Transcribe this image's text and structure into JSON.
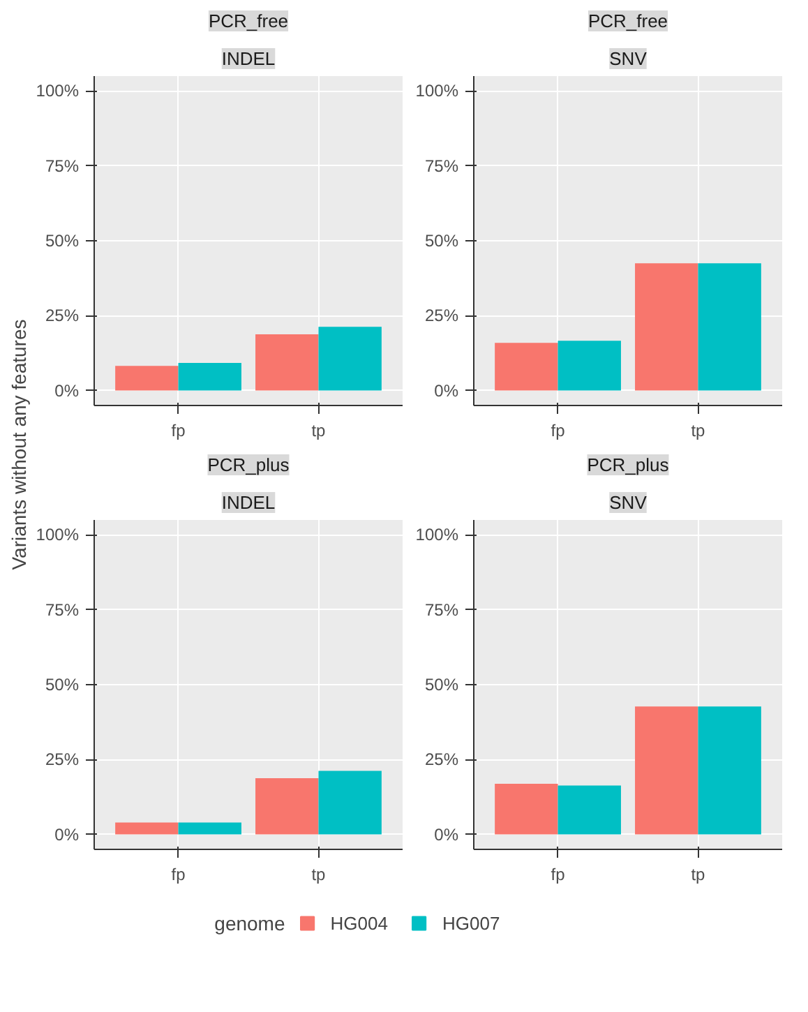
{
  "chart_data": [
    {
      "type": "bar",
      "title": "PCR_free",
      "subtitle": "INDEL",
      "ylabel": "Variants without any features",
      "categories": [
        "fp",
        "tp"
      ],
      "ylim": [
        -5,
        105
      ],
      "yticks": [
        {
          "value": 0,
          "label": "0%"
        },
        {
          "value": 25,
          "label": "25%"
        },
        {
          "value": 50,
          "label": "50%"
        },
        {
          "value": 75,
          "label": "75%"
        },
        {
          "value": 100,
          "label": "100%"
        }
      ],
      "grid": true,
      "legend": "bottom",
      "legend_title": "genome",
      "series": [
        {
          "name": "HG004",
          "color": "#f8766d",
          "values": [
            8.2,
            18.8
          ]
        },
        {
          "name": "HG007",
          "color": "#00bfc4",
          "values": [
            9.2,
            21.3
          ]
        }
      ]
    },
    {
      "type": "bar",
      "title": "PCR_free",
      "subtitle": "SNV",
      "categories": [
        "fp",
        "tp"
      ],
      "ylim": [
        -5,
        105
      ],
      "yticks": [
        {
          "value": 0,
          "label": "0%"
        },
        {
          "value": 25,
          "label": "25%"
        },
        {
          "value": 50,
          "label": "50%"
        },
        {
          "value": 75,
          "label": "75%"
        },
        {
          "value": 100,
          "label": "100%"
        }
      ],
      "grid": true,
      "series": [
        {
          "color": "#f8766d",
          "values": [
            15.9,
            42.5
          ]
        },
        {
          "color": "#00bfc4",
          "values": [
            16.6,
            42.5
          ]
        }
      ]
    },
    {
      "type": "bar",
      "title": "PCR_plus",
      "subtitle": "INDEL",
      "categories": [
        "fp",
        "tp"
      ],
      "ylim": [
        -5,
        105
      ],
      "yticks": [
        {
          "value": 0,
          "label": "0%"
        },
        {
          "value": 25,
          "label": "25%"
        },
        {
          "value": 50,
          "label": "50%"
        },
        {
          "value": 75,
          "label": "75%"
        },
        {
          "value": 100,
          "label": "100%"
        }
      ],
      "grid": true,
      "series": [
        {
          "color": "#f8766d",
          "values": [
            4.0,
            18.8
          ]
        },
        {
          "color": "#00bfc4",
          "values": [
            4.0,
            21.2
          ]
        }
      ]
    },
    {
      "type": "bar",
      "title": "PCR_plus",
      "subtitle": "SNV",
      "categories": [
        "fp",
        "tp"
      ],
      "ylim": [
        -5,
        105
      ],
      "yticks": [
        {
          "value": 0,
          "label": "0%"
        },
        {
          "value": 25,
          "label": "25%"
        },
        {
          "value": 50,
          "label": "50%"
        },
        {
          "value": 75,
          "label": "75%"
        },
        {
          "value": 100,
          "label": "100%"
        }
      ],
      "grid": true,
      "series": [
        {
          "color": "#f8766d",
          "values": [
            16.9,
            42.7
          ]
        },
        {
          "color": "#00bfc4",
          "values": [
            16.3,
            42.7
          ]
        }
      ]
    }
  ]
}
